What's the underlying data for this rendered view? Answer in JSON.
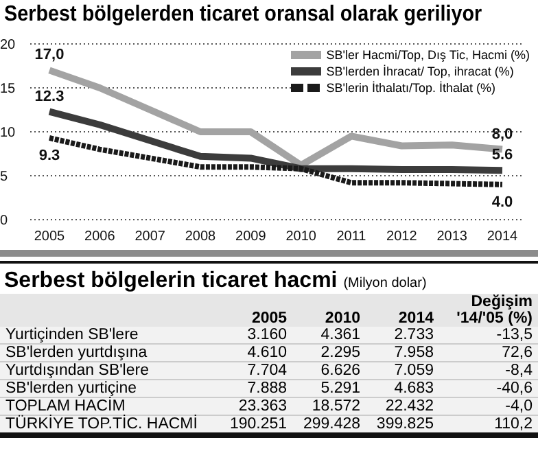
{
  "chart_data": [
    {
      "type": "line",
      "title": "Serbest bölgelerden ticaret oransal olarak geriliyor",
      "categories": [
        "2005",
        "2006",
        "2007",
        "2008",
        "2009",
        "2010",
        "2011",
        "2012",
        "2013",
        "2014"
      ],
      "series": [
        {
          "name": "SB'ler Hacmi/Top, Dış Tic, Hacmi (%)",
          "color": "#a3a3a3",
          "values": [
            17.0,
            15.0,
            12.5,
            10.0,
            10.0,
            6.2,
            9.5,
            8.4,
            8.5,
            8.0
          ],
          "value_labels": [
            "17,0",
            null,
            null,
            null,
            null,
            null,
            null,
            null,
            null,
            "8,0"
          ]
        },
        {
          "name": "SB'lerden İhracat/ Top, ihracat (%)",
          "color": "#3c3c3c",
          "values": [
            12.3,
            10.8,
            9.0,
            7.2,
            7.0,
            5.8,
            5.8,
            5.7,
            5.7,
            5.6
          ],
          "value_labels": [
            "12.3",
            null,
            null,
            null,
            null,
            null,
            null,
            null,
            null,
            "5.6"
          ]
        },
        {
          "name": "SB'lerin İthalatı/Top. İthalat (%)",
          "color": "#1a1a1a",
          "line_style": "dashed",
          "values": [
            9.3,
            8.0,
            7.0,
            6.0,
            6.0,
            5.8,
            4.2,
            4.2,
            4.1,
            4.0
          ],
          "value_labels": [
            "9.3",
            null,
            null,
            null,
            null,
            null,
            null,
            null,
            null,
            "4.0"
          ]
        }
      ],
      "ylim": [
        0,
        20
      ],
      "yticks": [
        0,
        5,
        10,
        15,
        20
      ],
      "grid": "y",
      "legend": "top right",
      "marker": "none"
    },
    {
      "type": "other",
      "title": "Serbest bölgelerin ticaret hacmi",
      "subtitle": "(Milyon dolar)",
      "categories": [
        "2005",
        "2010",
        "2014",
        "Değişim '14/'05 (%)"
      ],
      "y_categories": [
        "Yurtiçinden SB'lere",
        "SB'lerden yurtdışına",
        "Yurtdışından SB'lere",
        "SB'lerden yurtiçine",
        "TOPLAM HACİM",
        "TÜRKİYE TOP.TİC. HACMİ"
      ],
      "cell_labels": [
        [
          "3.160",
          "4.361",
          "2.733",
          "-13,5"
        ],
        [
          "4.610",
          "2.295",
          "7.958",
          "72,6"
        ],
        [
          "7.704",
          "6.626",
          "7.059",
          "-8,4"
        ],
        [
          "7.888",
          "5.291",
          "4.683",
          "-40,6"
        ],
        [
          "23.363",
          "18.572",
          "22.432",
          "-4,0"
        ],
        [
          "190.251",
          "299.428",
          "399.825",
          "110,2"
        ]
      ]
    }
  ]
}
